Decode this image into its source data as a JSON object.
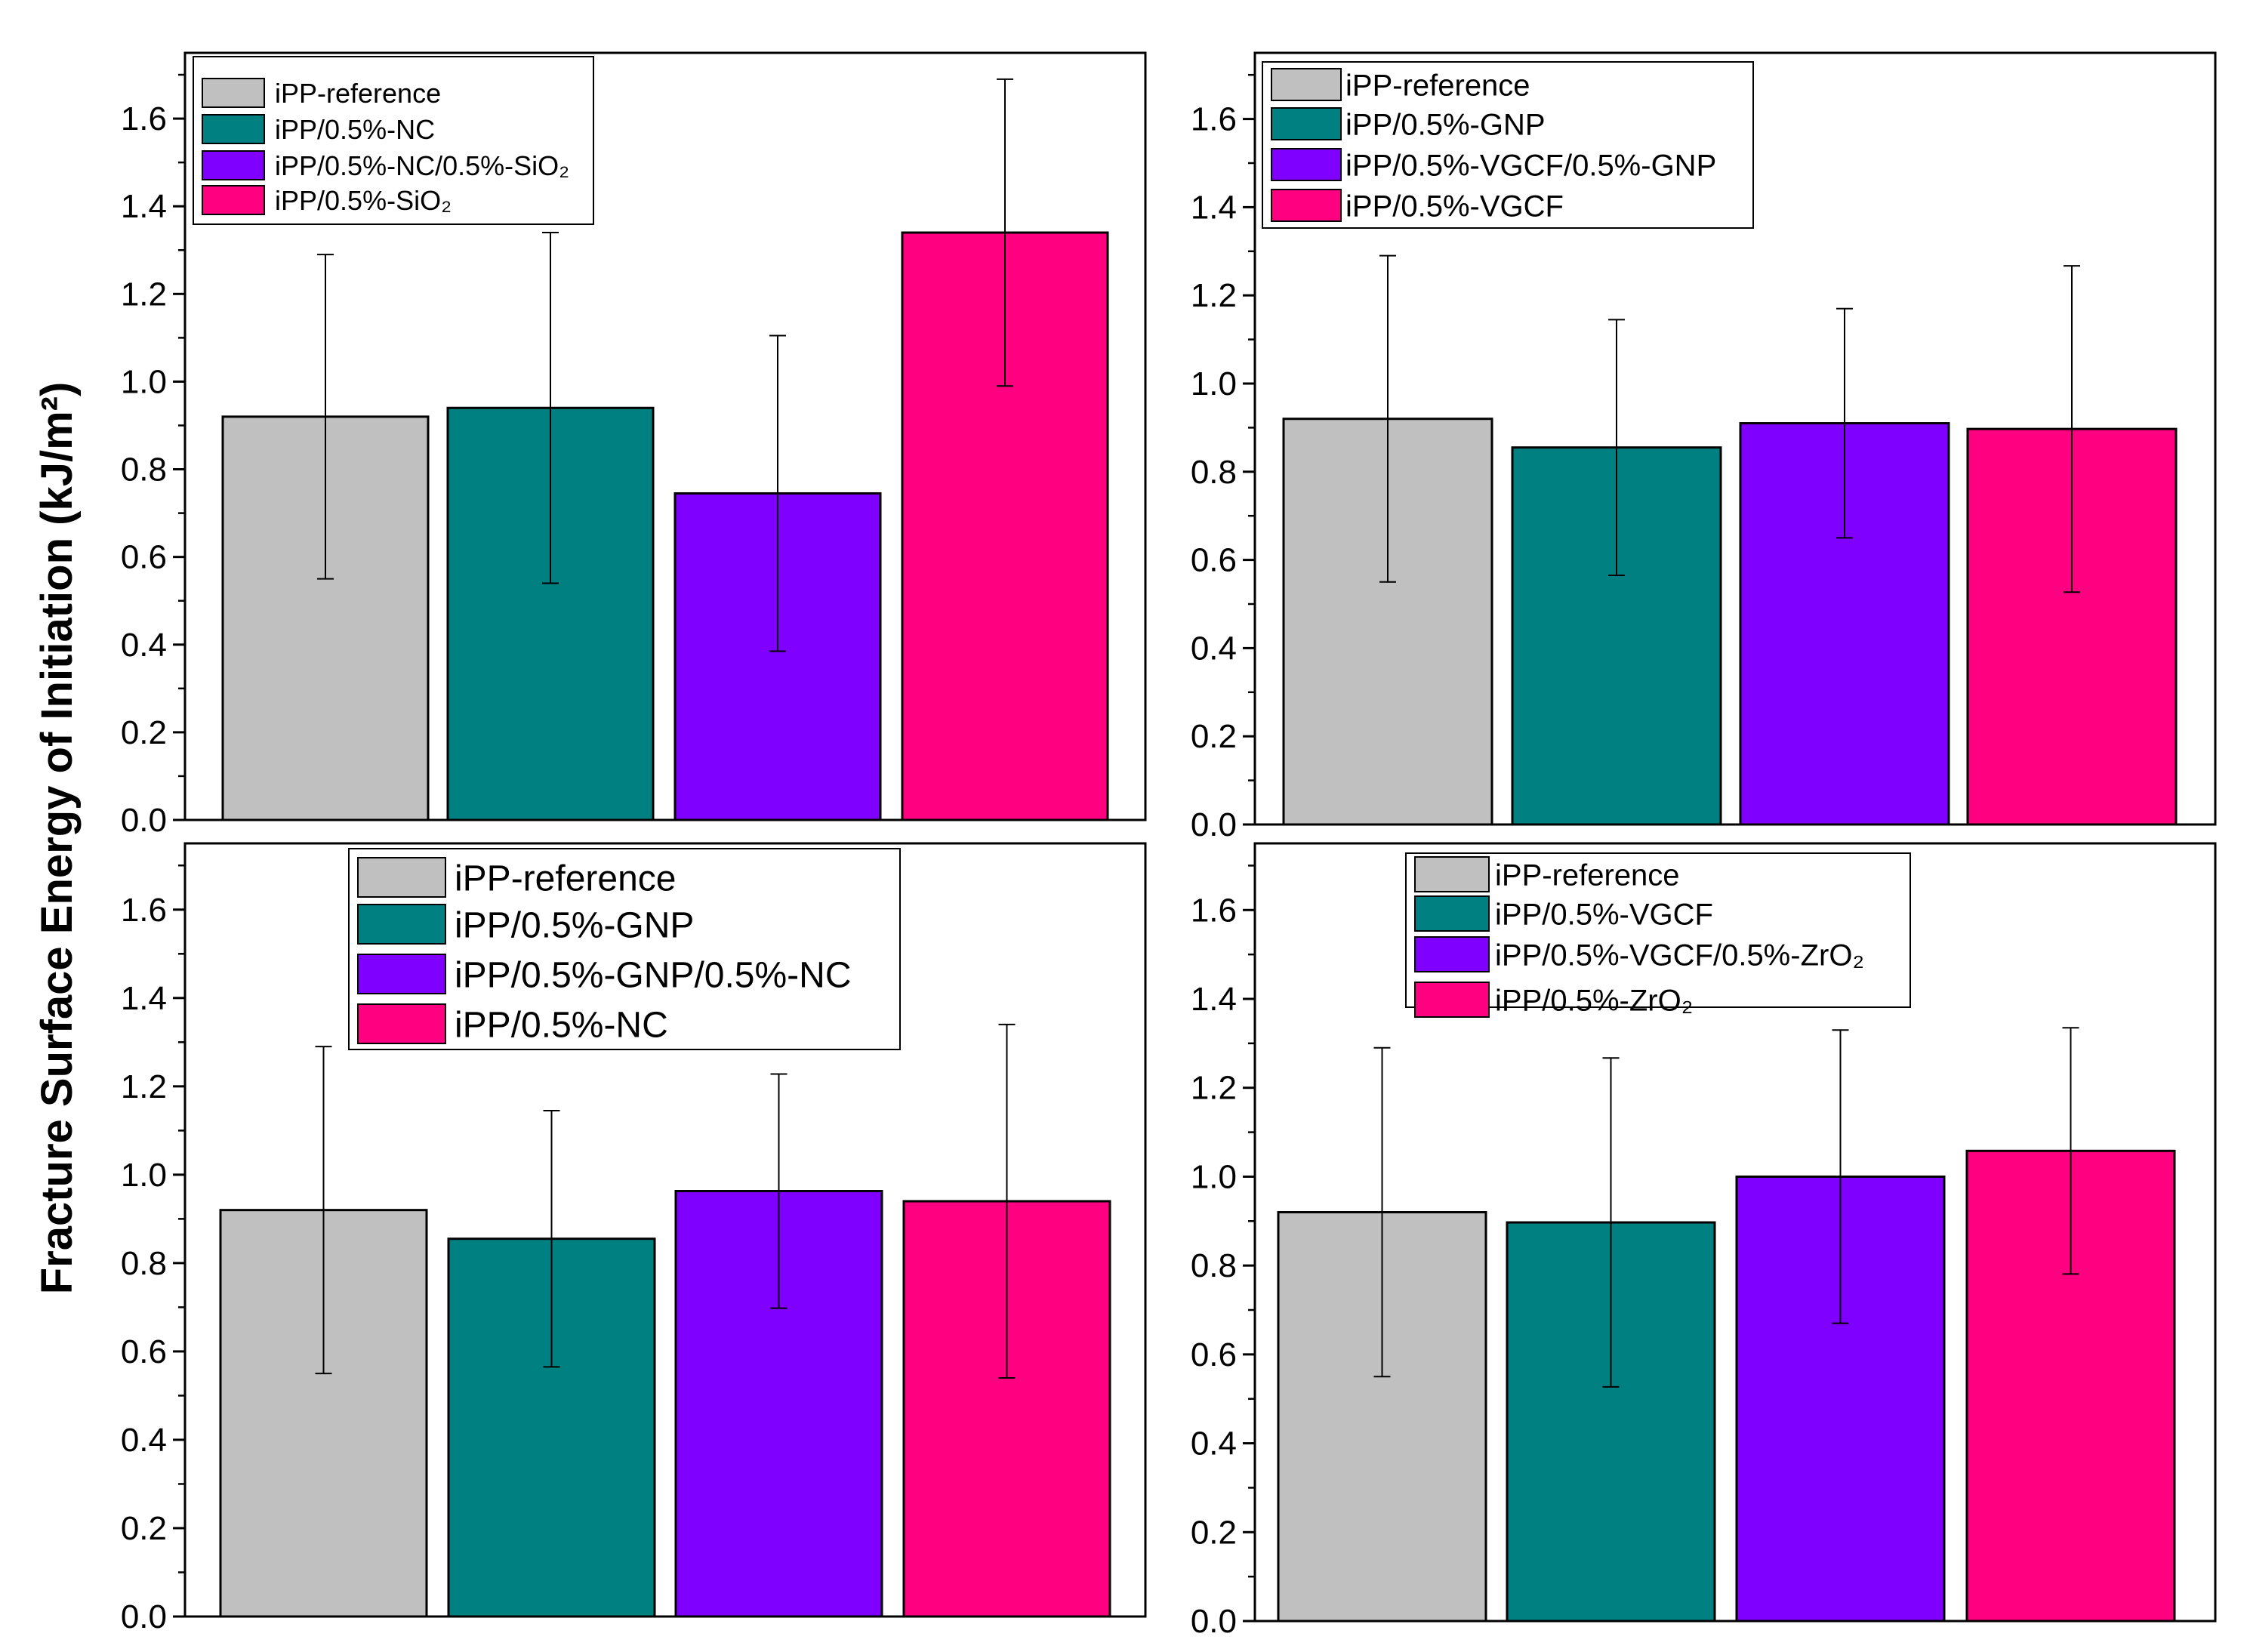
{
  "figure": {
    "ylabel": "Fracture Surface Energy of Initiation (kJ/m²)"
  },
  "chart_data": [
    {
      "type": "bar",
      "title": "",
      "xlabel": "",
      "ylabel": "Fracture Surface Energy of Initiation (kJ/m²)",
      "ylim": [
        0,
        1.75
      ],
      "yticks": [
        "0.0",
        "0.2",
        "0.4",
        "0.6",
        "0.8",
        "1.0",
        "1.2",
        "1.4",
        "1.6"
      ],
      "legend_position": "top-left",
      "categories": [
        "iPP-reference",
        "iPP/0.5%-NC",
        "iPP/0.5%-NC/0.5%-SiO₂",
        "iPP/0.5%-SiO₂"
      ],
      "values": [
        0.92,
        0.94,
        0.745,
        1.34
      ],
      "errors": [
        0.37,
        0.4,
        0.36,
        0.35
      ],
      "colors": [
        "#c0c0c0",
        "#008080",
        "#8000ff",
        "#ff0080"
      ]
    },
    {
      "type": "bar",
      "title": "",
      "xlabel": "",
      "ylabel": "",
      "ylim": [
        0,
        1.75
      ],
      "yticks": [
        "0.0",
        "0.2",
        "0.4",
        "0.6",
        "0.8",
        "1.0",
        "1.2",
        "1.4",
        "1.6"
      ],
      "legend_position": "top-left",
      "categories": [
        "iPP-reference",
        "iPP/0.5%-GNP",
        "iPP/0.5%-VGCF/0.5%-GNP",
        "iPP/0.5%-VGCF"
      ],
      "values": [
        0.92,
        0.855,
        0.91,
        0.897
      ],
      "errors": [
        0.37,
        0.29,
        0.26,
        0.37
      ],
      "colors": [
        "#c0c0c0",
        "#008080",
        "#8000ff",
        "#ff0080"
      ]
    },
    {
      "type": "bar",
      "title": "",
      "xlabel": "",
      "ylabel": "",
      "ylim": [
        0,
        1.75
      ],
      "yticks": [
        "0.0",
        "0.2",
        "0.4",
        "0.6",
        "0.8",
        "1.0",
        "1.2",
        "1.4",
        "1.6"
      ],
      "legend_position": "top-center",
      "categories": [
        "iPP-reference",
        "iPP/0.5%-GNP",
        "iPP/0.5%-GNP/0.5%-NC",
        "iPP/0.5%-NC"
      ],
      "values": [
        0.92,
        0.855,
        0.963,
        0.94
      ],
      "errors": [
        0.37,
        0.29,
        0.265,
        0.4
      ],
      "colors": [
        "#c0c0c0",
        "#008080",
        "#8000ff",
        "#ff0080"
      ]
    },
    {
      "type": "bar",
      "title": "",
      "xlabel": "",
      "ylabel": "",
      "ylim": [
        0,
        1.75
      ],
      "yticks": [
        "0.0",
        "0.2",
        "0.4",
        "0.6",
        "0.8",
        "1.0",
        "1.2",
        "1.4",
        "1.6"
      ],
      "legend_position": "top-center",
      "categories": [
        "iPP-reference",
        "iPP/0.5%-VGCF",
        "iPP/0.5%-VGCF/0.5%-ZrO₂",
        "iPP/0.5%-ZrO₂"
      ],
      "values": [
        0.92,
        0.897,
        1.0,
        1.058
      ],
      "errors": [
        0.37,
        0.37,
        0.33,
        0.277
      ],
      "colors": [
        "#c0c0c0",
        "#008080",
        "#8000ff",
        "#ff0080"
      ]
    }
  ]
}
